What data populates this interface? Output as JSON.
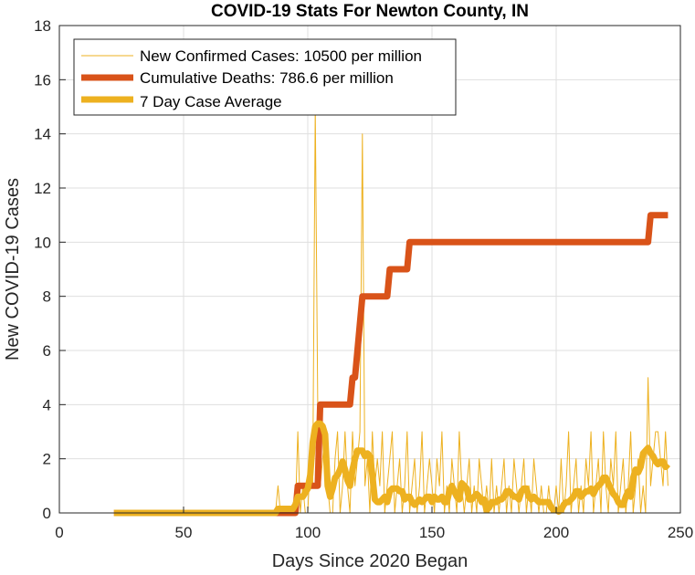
{
  "chart_data": {
    "type": "line",
    "title": "COVID-19 Stats For Newton County, IN",
    "xlabel": "Days Since 2020 Began",
    "ylabel": "New COVID-19 Cases",
    "xlim": [
      0,
      250
    ],
    "ylim": [
      0,
      18
    ],
    "xticks": [
      0,
      50,
      100,
      150,
      200,
      250
    ],
    "yticks": [
      0,
      2,
      4,
      6,
      8,
      10,
      12,
      14,
      16,
      18
    ],
    "grid": true,
    "legend_position": "top-left",
    "series": [
      {
        "name": "New Confirmed Cases: 10500 per million",
        "color": "#EDB120",
        "style": "thin",
        "x": [
          22,
          87,
          88,
          89,
          90,
          91,
          92,
          93,
          94,
          95,
          96,
          97,
          98,
          99,
          100,
          101,
          102,
          103,
          104,
          105,
          106,
          107,
          108,
          109,
          110,
          111,
          112,
          113,
          114,
          115,
          116,
          117,
          118,
          119,
          120,
          121,
          122,
          123,
          124,
          125,
          126,
          127,
          128,
          129,
          130,
          131,
          132,
          133,
          134,
          135,
          136,
          137,
          138,
          139,
          140,
          141,
          142,
          143,
          144,
          145,
          146,
          147,
          148,
          149,
          150,
          151,
          152,
          153,
          154,
          155,
          156,
          157,
          158,
          159,
          160,
          161,
          162,
          163,
          164,
          165,
          166,
          167,
          168,
          169,
          170,
          171,
          172,
          173,
          174,
          175,
          176,
          177,
          178,
          179,
          180,
          181,
          182,
          183,
          184,
          185,
          186,
          187,
          188,
          189,
          190,
          191,
          192,
          193,
          194,
          195,
          196,
          197,
          198,
          199,
          200,
          201,
          202,
          203,
          204,
          205,
          206,
          207,
          208,
          209,
          210,
          211,
          212,
          213,
          214,
          215,
          216,
          217,
          218,
          219,
          220,
          221,
          222,
          223,
          224,
          225,
          226,
          227,
          228,
          229,
          230,
          231,
          232,
          233,
          234,
          235,
          236,
          237,
          238,
          239,
          240,
          241,
          242,
          243,
          244,
          245
        ],
        "values": [
          0,
          0,
          1,
          0,
          0,
          0,
          0,
          0,
          0,
          0,
          3,
          0,
          1,
          0,
          0,
          2,
          1,
          15,
          4,
          1,
          2,
          3,
          1,
          0,
          0,
          2,
          3,
          0,
          1,
          3,
          1,
          0,
          3,
          1,
          2,
          3,
          14,
          1,
          2,
          0,
          3,
          1,
          2,
          1,
          3,
          0,
          1,
          2,
          3,
          0,
          1,
          2,
          0,
          1,
          3,
          0,
          1,
          2,
          0,
          1,
          3,
          0,
          1,
          2,
          1,
          0,
          2,
          1,
          3,
          0,
          1,
          0,
          2,
          1,
          0,
          3,
          1,
          0,
          1,
          2,
          0,
          1,
          0,
          2,
          1,
          0,
          1,
          0,
          2,
          0,
          1,
          0,
          1,
          2,
          0,
          1,
          0,
          2,
          1,
          0,
          1,
          2,
          0,
          1,
          0,
          2,
          1,
          0,
          1,
          0,
          0,
          1,
          0,
          0,
          1,
          0,
          2,
          0,
          1,
          3,
          0,
          1,
          2,
          0,
          1,
          0,
          2,
          1,
          3,
          0,
          1,
          2,
          0,
          3,
          1,
          0,
          2,
          1,
          3,
          0,
          1,
          2,
          0,
          1,
          3,
          0,
          1,
          2,
          0,
          1,
          0,
          5,
          1,
          2,
          3,
          3,
          2,
          1,
          3,
          1
        ]
      },
      {
        "name": "Cumulative Deaths: 786.6 per million",
        "color": "#D95319",
        "style": "thick",
        "x": [
          22,
          95,
          96,
          104,
          105,
          117,
          118,
          119,
          120,
          121,
          122,
          123,
          124,
          132,
          133,
          139,
          140,
          141,
          142,
          237,
          238,
          245
        ],
        "values": [
          0,
          0,
          1,
          1,
          4,
          4,
          5,
          5,
          6,
          7,
          8,
          8,
          8,
          8,
          9,
          9,
          9,
          10,
          10,
          10,
          11,
          11
        ]
      },
      {
        "name": "7 Day Case Average",
        "color": "#EDB120",
        "style": "thick",
        "x": [
          22,
          87,
          88,
          94,
          95,
          96,
          98,
          100,
          101,
          102,
          103,
          104,
          105,
          106,
          107,
          108,
          109,
          110,
          111,
          112,
          113,
          114,
          115,
          116,
          117,
          118,
          119,
          120,
          121,
          122,
          123,
          124,
          125,
          126,
          127,
          128,
          129,
          130,
          131,
          132,
          133,
          134,
          135,
          136,
          137,
          138,
          139,
          140,
          141,
          142,
          143,
          144,
          145,
          146,
          147,
          148,
          149,
          150,
          151,
          152,
          153,
          154,
          155,
          156,
          157,
          158,
          159,
          160,
          161,
          162,
          163,
          164,
          165,
          166,
          167,
          168,
          169,
          170,
          171,
          172,
          173,
          174,
          175,
          176,
          177,
          178,
          179,
          180,
          181,
          182,
          183,
          184,
          185,
          186,
          187,
          188,
          189,
          190,
          191,
          192,
          193,
          194,
          195,
          196,
          197,
          198,
          199,
          200,
          201,
          202,
          203,
          204,
          205,
          206,
          207,
          208,
          209,
          210,
          211,
          212,
          213,
          214,
          215,
          216,
          217,
          218,
          219,
          220,
          221,
          222,
          223,
          224,
          225,
          226,
          227,
          228,
          229,
          230,
          231,
          232,
          233,
          234,
          235,
          236,
          237,
          238,
          239,
          240,
          241,
          242,
          243,
          244,
          245
        ],
        "values": [
          0,
          0,
          0.15,
          0.15,
          0.3,
          0.6,
          0.6,
          0.9,
          1.4,
          2.6,
          3.2,
          3.3,
          3.3,
          3.2,
          2.9,
          1.0,
          0.6,
          0.9,
          1.3,
          1.4,
          1.6,
          1.9,
          1.6,
          1.2,
          1.0,
          1.6,
          2.0,
          2.3,
          2.3,
          2.3,
          2.1,
          2.2,
          2.1,
          1.4,
          0.5,
          0.4,
          0.4,
          0.5,
          0.6,
          0.4,
          0.8,
          0.9,
          0.9,
          0.9,
          0.8,
          0.8,
          0.5,
          0.6,
          0.6,
          0.4,
          0.3,
          0.4,
          0.5,
          0.4,
          0.5,
          0.6,
          0.6,
          0.4,
          0.6,
          0.5,
          0.5,
          0.6,
          0.4,
          0.4,
          0.8,
          1.0,
          0.8,
          0.6,
          0.5,
          1.1,
          1.0,
          0.9,
          0.5,
          0.5,
          0.6,
          0.7,
          0.6,
          0.4,
          0.5,
          0.1,
          0.2,
          0.4,
          0.4,
          0.4,
          0.5,
          0.5,
          0.6,
          0.8,
          0.8,
          0.7,
          0.6,
          0.6,
          0.5,
          0.8,
          0.9,
          0.9,
          0.6,
          0.5,
          0.6,
          0.5,
          0.4,
          0.4,
          0.4,
          0.4,
          0.4,
          0.2,
          0.1,
          0.1,
          0.05,
          0.1,
          0.3,
          0.4,
          0.4,
          0.5,
          0.6,
          0.8,
          0.8,
          0.6,
          0.7,
          0.8,
          0.8,
          0.9,
          0.7,
          0.9,
          1.0,
          1.1,
          1.3,
          1.3,
          1.1,
          0.9,
          0.7,
          0.6,
          0.4,
          0.3,
          0.3,
          0.6,
          0.8,
          0.6,
          1.3,
          1.6,
          1.5,
          1.7,
          2.2,
          2.3,
          2.4,
          2.2,
          2.1,
          1.9,
          1.8,
          1.9,
          1.9,
          1.7,
          1.8
        ]
      }
    ]
  }
}
